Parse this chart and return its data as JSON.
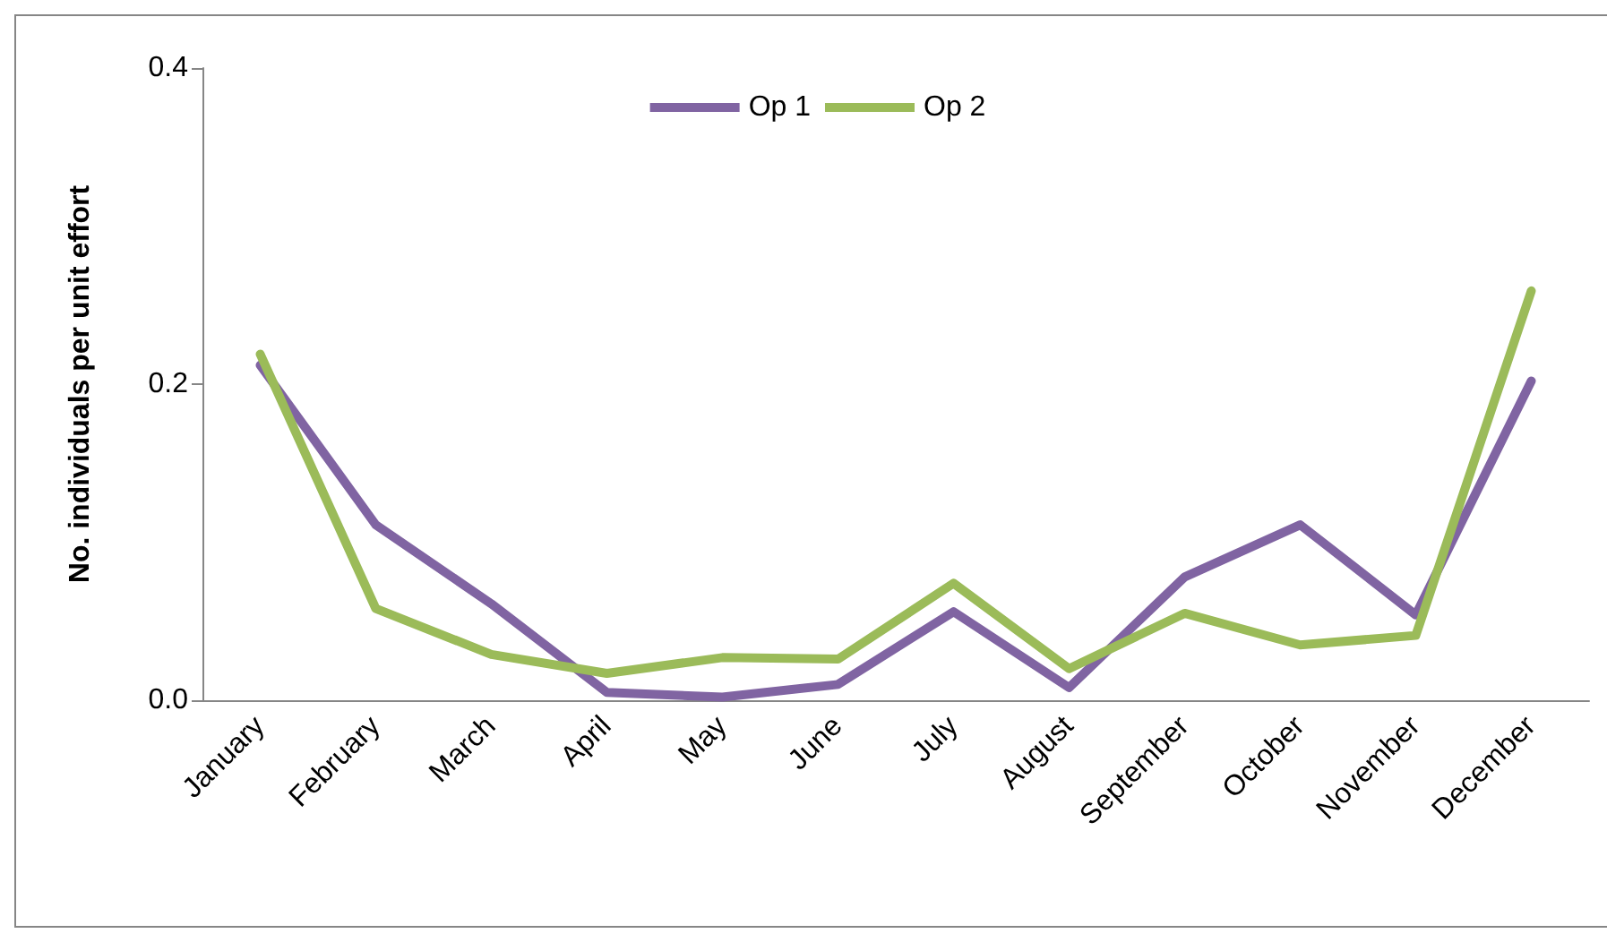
{
  "chart_data": {
    "type": "line",
    "ylabel": "No. individuals per unit effort",
    "categories": [
      "January",
      "February",
      "March",
      "April",
      "May",
      "June",
      "July",
      "August",
      "September",
      "October",
      "November",
      "December"
    ],
    "series": [
      {
        "name": "Op 1",
        "color": "#8064a2",
        "values": [
          0.212,
          0.111,
          0.061,
          0.005,
          0.002,
          0.01,
          0.056,
          0.008,
          0.078,
          0.111,
          0.054,
          0.202
        ]
      },
      {
        "name": "Op 2",
        "color": "#9bbb59",
        "values": [
          0.219,
          0.058,
          0.029,
          0.017,
          0.027,
          0.026,
          0.074,
          0.02,
          0.055,
          0.035,
          0.041,
          0.259
        ]
      }
    ],
    "ylim": [
      0,
      0.4
    ],
    "yticks": [
      {
        "value": 0,
        "label": "0.0"
      },
      {
        "value": 0.2,
        "label": "0.2"
      },
      {
        "value": 0.4,
        "label": "0.4"
      }
    ],
    "grid": false,
    "legend": "top",
    "marker": "none",
    "line_style": "solid"
  }
}
